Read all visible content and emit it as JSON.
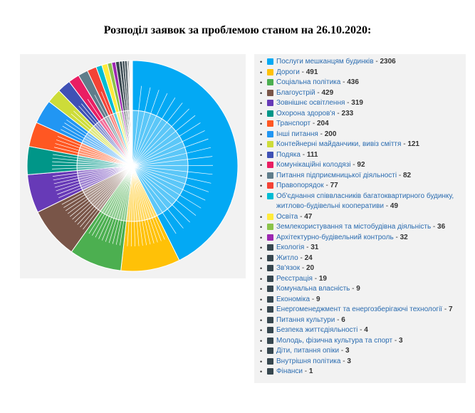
{
  "title": "Розподіл заявок за проблемою станом на 26.10.2020:",
  "chart_data": {
    "type": "pie",
    "categories": [
      "Послуги мешканцям будинків",
      "Дороги",
      "Соціальна політика",
      "Благоустрій",
      "Зовнішнє освітлення",
      "Охорона здоров'я",
      "Транспорт",
      "Інші питання",
      "Контейнерні майданчики, вивіз сміття",
      "Подяка",
      "Комунікаційні колодязі",
      "Питання підприємницької діяльності",
      "Правопорядок",
      "Об'єднання співвласників багатоквартирного будинку, житлово-будівельні кооперативи",
      "Освіта",
      "Землекористування та містобудівна діяльність",
      "Архітектурно-будівельний контроль",
      "Екологія",
      "Житло",
      "Зв'язок",
      "Реєстрація",
      "Комунальна власність",
      "Економіка",
      "Енергоменеджмент та енергозберігаючі технології",
      "Питання культури",
      "Безпека життєдіяльності",
      "Молодь, фізична культура та спорт",
      "Діти, питання опіки",
      "Внутрішня політика",
      "Фінанси"
    ],
    "values": [
      2306,
      491,
      436,
      429,
      319,
      233,
      204,
      200,
      121,
      111,
      92,
      82,
      77,
      49,
      47,
      36,
      32,
      31,
      24,
      20,
      19,
      9,
      9,
      7,
      6,
      4,
      3,
      3,
      3,
      1
    ],
    "colors": [
      "#03a9f4",
      "#ffc107",
      "#4caf50",
      "#795548",
      "#673ab7",
      "#009688",
      "#ff5722",
      "#2196f3",
      "#cddc39",
      "#3f51b5",
      "#e91e63",
      "#607d8b",
      "#f44336",
      "#00bcd4",
      "#ffeb3b",
      "#8bc34a",
      "#9c27b0",
      "#37474f",
      "#37474f",
      "#37474f",
      "#37474f",
      "#37474f",
      "#37474f",
      "#37474f",
      "#37474f",
      "#37474f",
      "#37474f",
      "#37474f",
      "#37474f",
      "#37474f"
    ],
    "legend_position": "right",
    "value_separator": " - "
  }
}
